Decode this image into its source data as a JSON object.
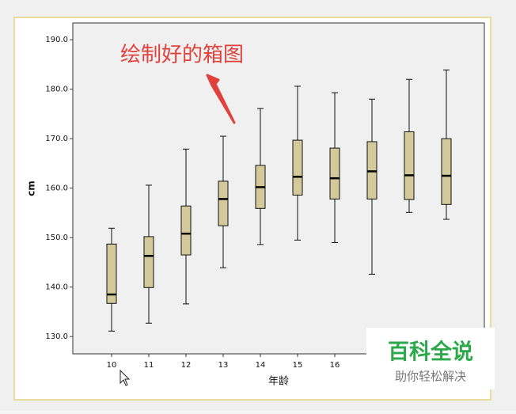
{
  "chart_data": {
    "type": "box",
    "annotation": "绘制好的箱图",
    "x_label": "年龄",
    "y_label": "cm",
    "categories": [
      "10",
      "11",
      "12",
      "13",
      "14",
      "15",
      "16",
      null,
      null,
      null
    ],
    "whisker_low": [
      131.1,
      132.7,
      136.6,
      143.9,
      148.6,
      149.5,
      149.0,
      142.6,
      155.1,
      153.7
    ],
    "q1": [
      136.7,
      139.9,
      146.5,
      152.4,
      155.9,
      158.6,
      157.8,
      157.8,
      157.7,
      156.7
    ],
    "median": [
      138.5,
      146.3,
      150.8,
      157.8,
      160.2,
      162.3,
      162.0,
      163.4,
      162.6,
      162.5
    ],
    "q3": [
      148.7,
      150.2,
      156.4,
      161.4,
      164.6,
      169.7,
      168.1,
      169.4,
      171.4,
      170.0
    ],
    "whisker_high": [
      151.9,
      160.6,
      167.9,
      170.5,
      176.1,
      180.6,
      179.3,
      178.0,
      182.0,
      183.9
    ],
    "color": "#d4c99b",
    "ylim": [
      126.5,
      193.4
    ],
    "yticks": [
      {
        "value": 130,
        "label": "130.0"
      },
      {
        "value": 140,
        "label": "140.0"
      },
      {
        "value": 150,
        "label": "150.0"
      },
      {
        "value": 160,
        "label": "160.0"
      },
      {
        "value": 170,
        "label": "170.0"
      },
      {
        "value": 180,
        "label": "180.0"
      },
      {
        "value": 190,
        "label": "190.0"
      }
    ]
  },
  "watermark": {
    "title": "百科全说",
    "subtitle": "助你轻松解决"
  }
}
